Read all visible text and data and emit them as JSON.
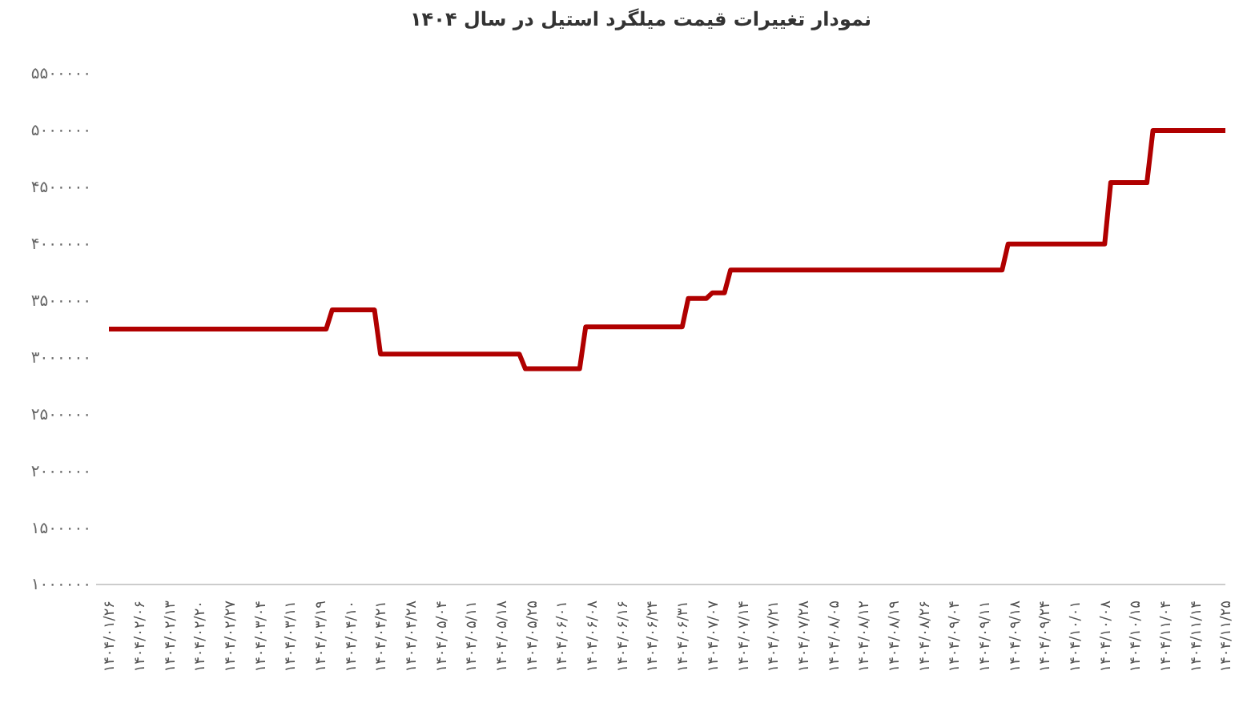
{
  "chart_data": {
    "type": "line",
    "title": "نمودار تغییرات قیمت میلگرد استیل در سال ۱۴۰۴",
    "categories": [
      "۱۴۰۴/۰۱/۲۶",
      null,
      null,
      null,
      null,
      "۱۴۰۴/۰۲/۰۶",
      null,
      null,
      null,
      null,
      "۱۴۰۴/۰۲/۱۳",
      null,
      null,
      null,
      null,
      "۱۴۰۴/۰۲/۲۰",
      null,
      null,
      null,
      null,
      "۱۴۰۴/۰۲/۲۷",
      null,
      null,
      null,
      null,
      "۱۴۰۴/۰۳/۰۴",
      null,
      null,
      null,
      null,
      "۱۴۰۴/۰۳/۱۱",
      null,
      null,
      null,
      null,
      "۱۴۰۴/۰۳/۱۹",
      null,
      null,
      null,
      null,
      "۱۴۰۴/۰۴/۱۰",
      null,
      null,
      null,
      null,
      "۱۴۰۴/۰۴/۲۱",
      null,
      null,
      null,
      null,
      "۱۴۰۴/۰۴/۲۸",
      null,
      null,
      null,
      null,
      "۱۴۰۴/۰۵/۰۴",
      null,
      null,
      null,
      null,
      "۱۴۰۴/۰۵/۱۱",
      null,
      null,
      null,
      null,
      "۱۴۰۴/۰۵/۱۸",
      null,
      null,
      null,
      null,
      "۱۴۰۴/۰۵/۲۵",
      null,
      null,
      null,
      null,
      "۱۴۰۴/۰۶/۰۱",
      null,
      null,
      null,
      null,
      "۱۴۰۴/۰۶/۰۸",
      null,
      null,
      null,
      null,
      "۱۴۰۴/۰۶/۱۶",
      null,
      null,
      null,
      null,
      "۱۴۰۴/۰۶/۲۴",
      null,
      null,
      null,
      null,
      "۱۴۰۴/۰۶/۳۱",
      null,
      null,
      null,
      null,
      "۱۴۰۴/۰۷/۰۷",
      null,
      null,
      null,
      null,
      "۱۴۰۴/۰۷/۱۴",
      null,
      null,
      null,
      null,
      "۱۴۰۴/۰۷/۲۱",
      null,
      null,
      null,
      null,
      "۱۴۰۴/۰۷/۲۸",
      null,
      null,
      null,
      null,
      "۱۴۰۴/۰۸/۰۵",
      null,
      null,
      null,
      null,
      "۱۴۰۴/۰۸/۱۲",
      null,
      null,
      null,
      null,
      "۱۴۰۴/۰۸/۱۹",
      null,
      null,
      null,
      null,
      "۱۴۰۴/۰۸/۲۶",
      null,
      null,
      null,
      null,
      "۱۴۰۴/۰۹/۰۴",
      null,
      null,
      null,
      null,
      "۱۴۰۴/۰۹/۱۱",
      null,
      null,
      null,
      null,
      "۱۴۰۴/۰۹/۱۸",
      null,
      null,
      null,
      null,
      "۱۴۰۴/۰۹/۲۴",
      null,
      null,
      null,
      null,
      "۱۴۰۴/۱۰/۰۱",
      null,
      null,
      null,
      null,
      "۱۴۰۴/۱۰/۰۸",
      null,
      null,
      null,
      null,
      "۱۴۰۴/۱۰/۱۵",
      null,
      null,
      null,
      null,
      "۱۴۰۴/۱۱/۰۴",
      null,
      null,
      null,
      null,
      "۱۴۰۴/۱۱/۱۴",
      null,
      null,
      null,
      null,
      "۱۴۰۴/۱۱/۲۵"
    ],
    "series": [
      {
        "color": "#b00000",
        "values": [
          3250000,
          3250000,
          3250000,
          3250000,
          3250000,
          3250000,
          3250000,
          3250000,
          3250000,
          3250000,
          3250000,
          3250000,
          3250000,
          3250000,
          3250000,
          3250000,
          3250000,
          3250000,
          3250000,
          3250000,
          3250000,
          3250000,
          3250000,
          3250000,
          3250000,
          3250000,
          3250000,
          3250000,
          3250000,
          3250000,
          3250000,
          3250000,
          3250000,
          3250000,
          3250000,
          3250000,
          3250000,
          3420000,
          3420000,
          3420000,
          3420000,
          3420000,
          3420000,
          3420000,
          3420000,
          3030000,
          3030000,
          3030000,
          3030000,
          3030000,
          3030000,
          3030000,
          3030000,
          3030000,
          3030000,
          3030000,
          3030000,
          3030000,
          3030000,
          3030000,
          3030000,
          3030000,
          3030000,
          3030000,
          3030000,
          3030000,
          3030000,
          3030000,
          3030000,
          2900000,
          2900000,
          2900000,
          2900000,
          2900000,
          2900000,
          2900000,
          2900000,
          2900000,
          2900000,
          3270000,
          3270000,
          3270000,
          3270000,
          3270000,
          3270000,
          3270000,
          3270000,
          3270000,
          3270000,
          3270000,
          3270000,
          3270000,
          3270000,
          3270000,
          3270000,
          3270000,
          3520000,
          3520000,
          3520000,
          3520000,
          3570000,
          3570000,
          3570000,
          3770000,
          3770000,
          3770000,
          3770000,
          3770000,
          3770000,
          3770000,
          3770000,
          3770000,
          3770000,
          3770000,
          3770000,
          3770000,
          3770000,
          3770000,
          3770000,
          3770000,
          3770000,
          3770000,
          3770000,
          3770000,
          3770000,
          3770000,
          3770000,
          3770000,
          3770000,
          3770000,
          3770000,
          3770000,
          3770000,
          3770000,
          3770000,
          3770000,
          3770000,
          3770000,
          3770000,
          3770000,
          3770000,
          3770000,
          3770000,
          3770000,
          3770000,
          3770000,
          3770000,
          3770000,
          3770000,
          4000000,
          4000000,
          4000000,
          4000000,
          4000000,
          4000000,
          4000000,
          4000000,
          4000000,
          4000000,
          4000000,
          4000000,
          4000000,
          4000000,
          4000000,
          4000000,
          4000000,
          4540000,
          4540000,
          4540000,
          4540000,
          4540000,
          4540000,
          4540000,
          5000000,
          5000000,
          5000000,
          5000000,
          5000000,
          5000000,
          5000000,
          5000000,
          5000000,
          5000000,
          5000000,
          5000000,
          5000000
        ]
      }
    ],
    "ylim": [
      1000000,
      5500000
    ],
    "yticks": [
      {
        "value": 1000000,
        "label": "۱۰۰۰۰۰۰"
      },
      {
        "value": 1500000,
        "label": "۱۵۰۰۰۰۰"
      },
      {
        "value": 2000000,
        "label": "۲۰۰۰۰۰۰"
      },
      {
        "value": 2500000,
        "label": "۲۵۰۰۰۰۰"
      },
      {
        "value": 3000000,
        "label": "۳۰۰۰۰۰۰"
      },
      {
        "value": 3500000,
        "label": "۳۵۰۰۰۰۰"
      },
      {
        "value": 4000000,
        "label": "۴۰۰۰۰۰۰"
      },
      {
        "value": 4500000,
        "label": "۴۵۰۰۰۰۰"
      },
      {
        "value": 5000000,
        "label": "۵۰۰۰۰۰۰"
      },
      {
        "value": 5500000,
        "label": "۵۵۰۰۰۰۰"
      }
    ],
    "grid": false,
    "marker": "none",
    "line_style": "solid"
  }
}
